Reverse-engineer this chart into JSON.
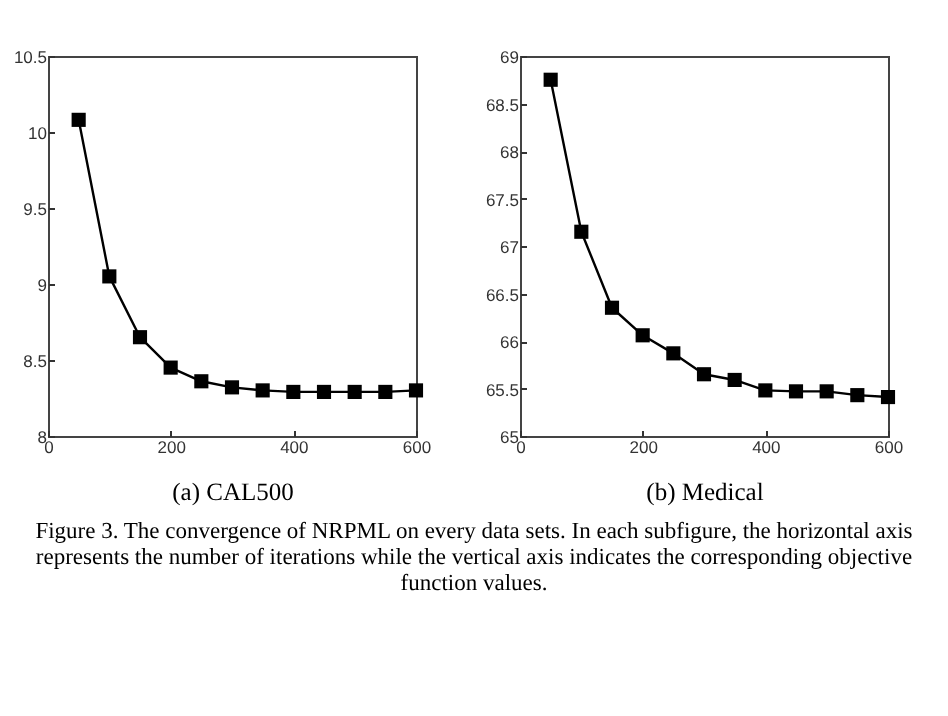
{
  "chart_data": [
    {
      "type": "line",
      "xlabel": "(a) CAL500",
      "x": [
        50,
        100,
        150,
        200,
        250,
        300,
        350,
        400,
        450,
        500,
        550,
        600
      ],
      "series": [
        {
          "color": "#000000",
          "values": [
            10.08,
            9.05,
            8.65,
            8.45,
            8.36,
            8.32,
            8.3,
            8.29,
            8.29,
            8.29,
            8.29,
            8.3
          ]
        }
      ],
      "xlim": [
        0,
        600
      ],
      "xticks": [
        0,
        200,
        400,
        600
      ],
      "ylim": [
        8,
        10.5
      ],
      "yticks": [
        8,
        8.5,
        9,
        9.5,
        10,
        10.5
      ],
      "marker": "square",
      "line_style": "solid",
      "annotations": [
        "Figure 3. The convergence of NRPML on every data sets. In each subfigure, the horizontal axis represents the number of iterations while the vertical axis indicates the corresponding objective function values."
      ]
    },
    {
      "type": "line",
      "xlabel": "(b) Medical",
      "x": [
        50,
        100,
        150,
        200,
        250,
        300,
        350,
        400,
        450,
        500,
        550,
        600
      ],
      "series": [
        {
          "color": "#000000",
          "values": [
            68.75,
            67.15,
            66.35,
            66.06,
            65.87,
            65.65,
            65.59,
            65.48,
            65.47,
            65.47,
            65.43,
            65.41
          ]
        }
      ],
      "xlim": [
        0,
        600
      ],
      "xticks": [
        0,
        200,
        400,
        600
      ],
      "ylim": [
        65,
        69
      ],
      "yticks": [
        65,
        65.5,
        66,
        66.5,
        67,
        67.5,
        68,
        68.5,
        69
      ],
      "marker": "square",
      "line_style": "solid"
    }
  ]
}
